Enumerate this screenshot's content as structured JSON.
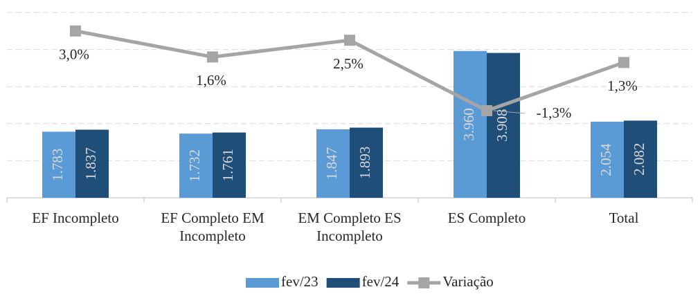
{
  "chart_data": {
    "type": "bar",
    "categories": [
      "EF Incompleto",
      "EF Completo EM Incompleto",
      "EM Completo ES Incompleto",
      "ES Completo",
      "Total"
    ],
    "series": [
      {
        "name": "fev/23",
        "color": "#5b9bd5",
        "values": [
          1783,
          1732,
          1847,
          3960,
          2054
        ],
        "value_labels": [
          "1.783",
          "1.732",
          "1.847",
          "3.960",
          "2.054"
        ]
      },
      {
        "name": "fev/24",
        "color": "#1f4e79",
        "values": [
          1837,
          1761,
          1893,
          3908,
          2082
        ],
        "value_labels": [
          "1.837",
          "1.761",
          "1.893",
          "3.908",
          "2.082"
        ]
      },
      {
        "name": "Variação",
        "type": "line",
        "axis": "y2",
        "color": "#a5a5a5",
        "values": [
          3.0,
          1.6,
          2.5,
          -1.3,
          1.3
        ],
        "value_labels": [
          "3,0%",
          "1,6%",
          "2,5%",
          "-1,3%",
          "1,3%"
        ]
      }
    ],
    "ylim": [
      0,
      5000
    ],
    "yticks": [
      0,
      1000,
      2000,
      3000,
      4000,
      5000
    ],
    "grid": true,
    "y2lim": [
      -6,
      4
    ],
    "legend": "bottom"
  }
}
